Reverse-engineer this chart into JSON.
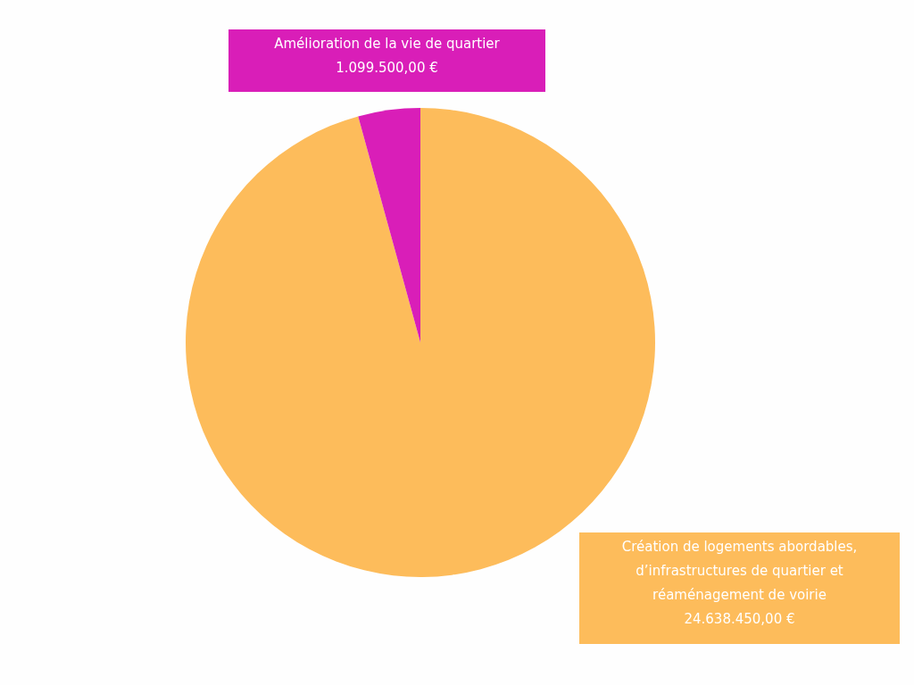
{
  "chart_data": {
    "type": "pie",
    "categories": [
      "Création de logements abordables, d’infrastructures de quartier et réaménagement de voirie",
      "Amélioration de la vie de quartier"
    ],
    "values": [
      24638450.0,
      1099500.0
    ],
    "colors": [
      "#fdbc5b",
      "#d91eb8"
    ],
    "value_labels": [
      "24.638.450,00 €",
      "1.099.500,00 €"
    ]
  }
}
